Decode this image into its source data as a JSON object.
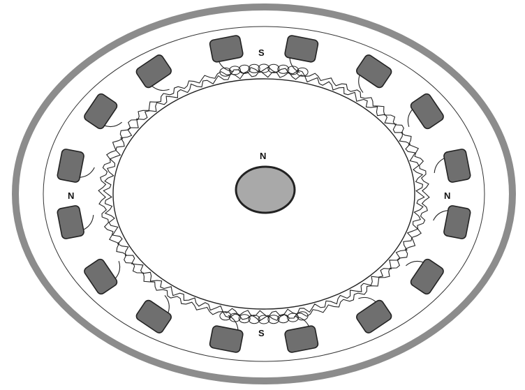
{
  "diagram": {
    "labels": {
      "top": "S",
      "bottom": "S",
      "left": "N",
      "right": "N",
      "center": "N"
    },
    "colors": {
      "outer_ring": "#8c8c8c",
      "coil_fill": "#6f6f6f",
      "rotor_fill": "#a9a9a9",
      "line": "#222222",
      "background": "#ffffff"
    },
    "coil_count": 16
  }
}
